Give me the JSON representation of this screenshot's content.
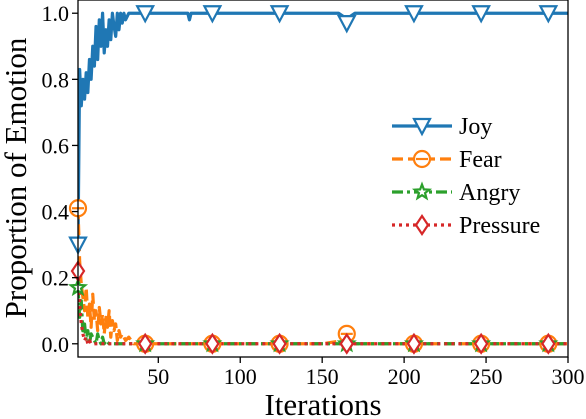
{
  "chart_data": {
    "type": "line",
    "xlabel": "Iterations",
    "ylabel": "Proportion of Emotion",
    "xlim": [
      1,
      300
    ],
    "ylim": [
      -0.04,
      1.04
    ],
    "xticks": [
      50,
      100,
      150,
      200,
      250,
      300
    ],
    "yticks": [
      0.0,
      0.2,
      0.4,
      0.6,
      0.8,
      1.0
    ],
    "ytick_labels": [
      "0.0",
      "0.2",
      "0.4",
      "0.6",
      "0.8",
      "1.0"
    ],
    "grid": false,
    "legend": "center-right",
    "series": [
      {
        "name": "Joy",
        "color": "#1f77b4",
        "dash": "solid",
        "marker": "triangle-down-icon",
        "markers_at": [
          1,
          42,
          83,
          124,
          165,
          206,
          247,
          288
        ],
        "x": [
          1,
          2,
          3,
          4,
          5,
          6,
          7,
          8,
          9,
          10,
          11,
          12,
          13,
          14,
          15,
          16,
          17,
          18,
          19,
          20,
          21,
          22,
          23,
          24,
          25,
          26,
          27,
          28,
          29,
          30,
          32,
          35,
          38,
          42,
          50,
          60,
          68,
          69,
          70,
          71,
          80,
          100,
          120,
          140,
          160,
          163,
          165,
          167,
          170,
          200,
          250,
          300
        ],
        "y": [
          0.3,
          0.83,
          0.72,
          0.8,
          0.74,
          0.82,
          0.76,
          0.86,
          0.8,
          0.9,
          0.84,
          0.96,
          0.86,
          0.98,
          0.9,
          1.0,
          0.88,
          0.95,
          0.9,
          0.98,
          0.92,
          1.0,
          0.96,
          0.93,
          1.0,
          0.95,
          1.0,
          0.97,
          1.0,
          0.98,
          1.0,
          1.0,
          1.0,
          1.0,
          1.0,
          1.0,
          1.0,
          0.98,
          1.0,
          1.0,
          1.0,
          1.0,
          1.0,
          1.0,
          1.0,
          0.99,
          0.97,
          0.99,
          1.0,
          1.0,
          1.0,
          1.0
        ]
      },
      {
        "name": "Fear",
        "color": "#ff7f0e",
        "dash": "dashed",
        "marker": "circle-minus-icon",
        "markers_at": [
          1,
          42,
          83,
          124,
          165,
          206,
          247,
          288
        ],
        "x": [
          1,
          2,
          3,
          4,
          5,
          6,
          7,
          8,
          9,
          10,
          11,
          12,
          13,
          14,
          15,
          16,
          17,
          18,
          19,
          20,
          21,
          22,
          23,
          24,
          25,
          26,
          27,
          28,
          30,
          32,
          35,
          38,
          42,
          50,
          60,
          70,
          100,
          150,
          163,
          165,
          167,
          170,
          200,
          250,
          300
        ],
        "y": [
          0.41,
          0.25,
          0.18,
          0.14,
          0.1,
          0.17,
          0.08,
          0.12,
          0.05,
          0.15,
          0.07,
          0.1,
          0.04,
          0.11,
          0.06,
          0.09,
          0.03,
          0.08,
          0.05,
          0.1,
          0.02,
          0.07,
          0.04,
          0.06,
          0.01,
          0.04,
          0.02,
          0.03,
          0.01,
          0.02,
          0.0,
          0.0,
          0.0,
          0.0,
          0.0,
          0.0,
          0.0,
          0.0,
          0.01,
          0.03,
          0.01,
          0.0,
          0.0,
          0.0,
          0.0
        ]
      },
      {
        "name": "Angry",
        "color": "#2ca02c",
        "dash": "dashdot",
        "marker": "star-icon",
        "markers_at": [
          1,
          42,
          83,
          124,
          165,
          206,
          247,
          288
        ],
        "x": [
          1,
          2,
          3,
          4,
          5,
          6,
          7,
          8,
          9,
          10,
          11,
          12,
          13,
          14,
          15,
          16,
          17,
          18,
          20,
          25,
          30,
          42,
          50,
          100,
          150,
          200,
          250,
          300
        ],
        "y": [
          0.17,
          0.08,
          0.13,
          0.03,
          0.06,
          0.01,
          0.04,
          0.0,
          0.03,
          0.02,
          0.01,
          0.0,
          0.03,
          0.01,
          0.0,
          0.02,
          0.0,
          0.01,
          0.0,
          0.0,
          0.0,
          0.0,
          0.0,
          0.0,
          0.0,
          0.0,
          0.0,
          0.0
        ]
      },
      {
        "name": "Pressure",
        "color": "#d62728",
        "dash": "dotted",
        "marker": "diamond-icon",
        "markers_at": [
          1,
          42,
          83,
          124,
          165,
          206,
          247,
          288
        ],
        "x": [
          1,
          2,
          3,
          4,
          5,
          6,
          7,
          8,
          9,
          10,
          12,
          15,
          20,
          42,
          50,
          100,
          150,
          200,
          250,
          300
        ],
        "y": [
          0.22,
          0.12,
          0.06,
          0.03,
          0.01,
          0.02,
          0.0,
          0.01,
          0.0,
          0.0,
          0.0,
          0.0,
          0.0,
          0.0,
          0.0,
          0.0,
          0.0,
          0.0,
          0.0,
          0.0
        ]
      }
    ]
  }
}
